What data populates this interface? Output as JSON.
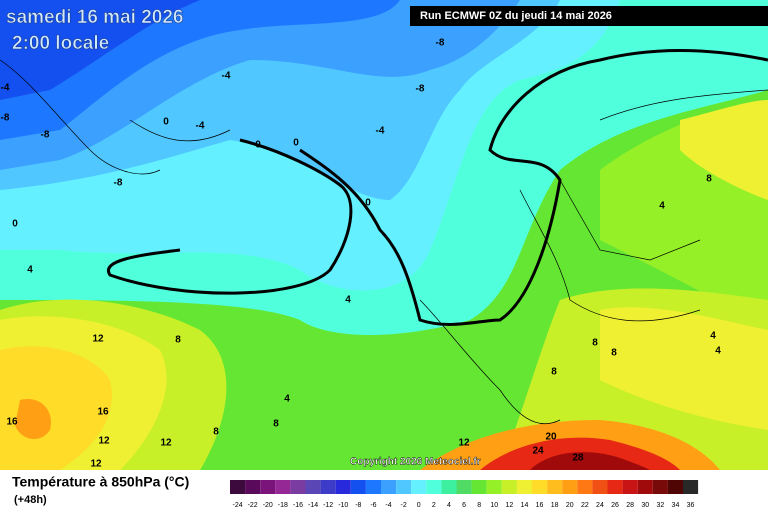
{
  "header": {
    "date": "samedi 16 mai 2026",
    "time": "2:00 locale",
    "run": "Run ECMWF 0Z du jeudi 14 mai 2026"
  },
  "copyright": "Copyright 2026 Meteociel.fr",
  "legend": {
    "title": "Température à 850hPa (°C)",
    "subtitle": "(+48h)",
    "scale": [
      -24,
      -22,
      -20,
      -18,
      -16,
      -14,
      -12,
      -10,
      -8,
      -6,
      -4,
      -2,
      0,
      2,
      4,
      6,
      8,
      10,
      12,
      14,
      16,
      18,
      20,
      22,
      24,
      26,
      28,
      30,
      32,
      34,
      36
    ],
    "colors": [
      "#3c0a3c",
      "#5a0a5a",
      "#7a147a",
      "#962896",
      "#7a3ca0",
      "#5a46b4",
      "#3c3cc8",
      "#2828dc",
      "#1450f0",
      "#1e78ff",
      "#3ca0ff",
      "#50c8ff",
      "#64f0ff",
      "#50ffdc",
      "#3cf0a0",
      "#50dc64",
      "#64e632",
      "#96f028",
      "#c8f028",
      "#f0f032",
      "#ffdc28",
      "#ffbe1e",
      "#ffa014",
      "#ff7814",
      "#f05014",
      "#e62814",
      "#c81414",
      "#a00a0a",
      "#780a0a",
      "#500505",
      "#282828"
    ]
  },
  "contour_labels": [
    -4,
    -8,
    -8,
    -8,
    -4,
    -8,
    -8,
    -4,
    -4,
    0,
    0,
    0,
    0,
    0,
    4,
    4,
    4,
    8,
    8,
    8,
    8,
    4,
    8,
    8,
    4,
    4,
    8,
    12,
    12,
    12,
    12,
    12,
    16,
    16,
    20,
    24,
    28
  ]
}
